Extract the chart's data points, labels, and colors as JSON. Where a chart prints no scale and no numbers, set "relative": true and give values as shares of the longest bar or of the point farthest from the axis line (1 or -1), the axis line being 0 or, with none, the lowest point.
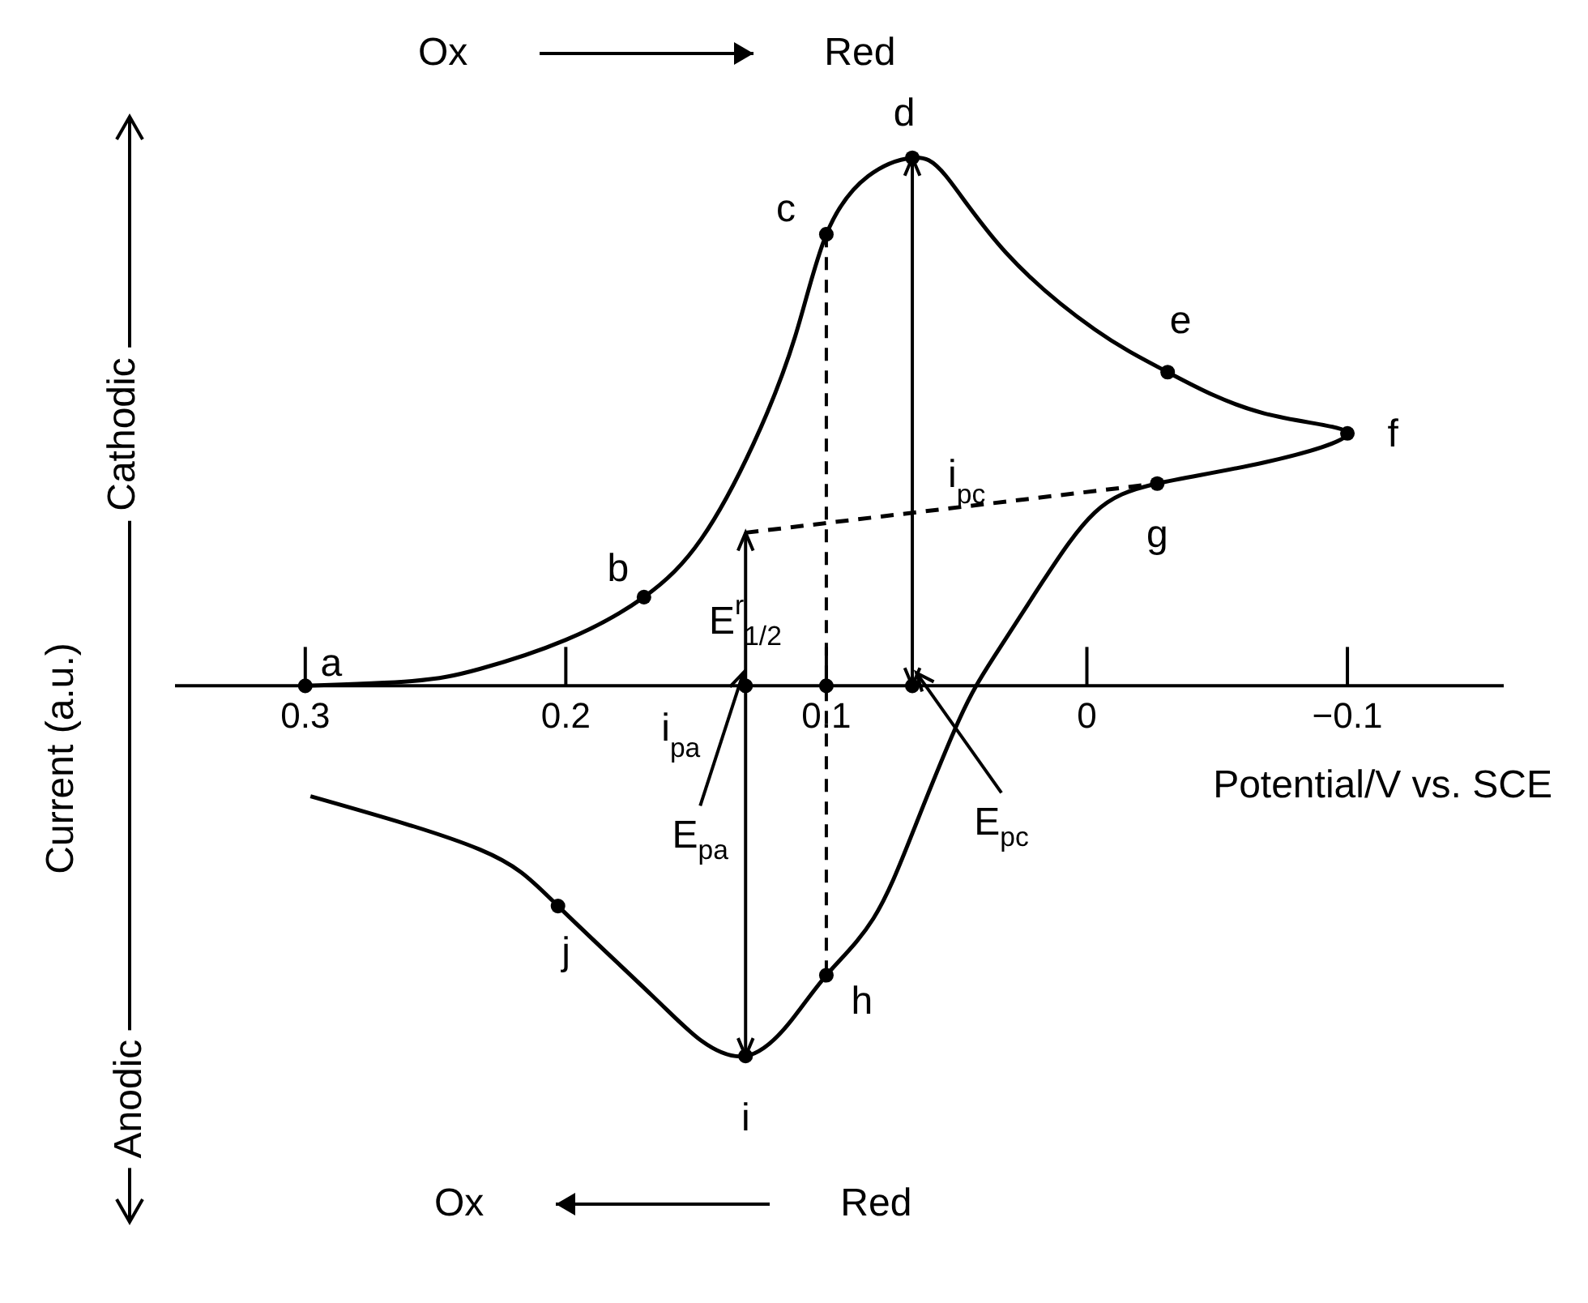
{
  "chart_data": {
    "type": "line",
    "relative": true,
    "xlabel": "Potential/V vs. SCE",
    "ylabel": "Current (a.u.)",
    "xlim": [
      0.35,
      -0.16
    ],
    "xticks": [
      0.3,
      0.2,
      0.1,
      0,
      {
        "value": -0.1,
        "label": "−0.1"
      }
    ],
    "series": [
      {
        "color": "#000000",
        "marker": "none",
        "line_style": "solid",
        "x": [
          0.3,
          0.259,
          0.233,
          0.2,
          0.17,
          0.148,
          0.128,
          0.112,
          0.1,
          0.084,
          0.067,
          0.054,
          0.031,
          -0.003,
          -0.031,
          -0.068,
          -0.1,
          -0.068,
          -0.027,
          -0.003,
          0.017,
          0.036,
          0.049,
          0.066,
          0.082,
          0.1,
          0.115,
          0.131,
          0.148,
          0.167,
          0.203,
          0.233,
          0.298
        ],
        "values": [
          0,
          0.009,
          0.032,
          0.087,
          0.168,
          0.278,
          0.458,
          0.661,
          0.855,
          0.965,
          1,
          0.965,
          0.82,
          0.675,
          0.594,
          0.516,
          0.478,
          0.423,
          0.383,
          0.328,
          0.197,
          0.052,
          -0.064,
          -0.267,
          -0.441,
          -0.548,
          -0.643,
          -0.701,
          -0.672,
          -0.586,
          -0.417,
          -0.31,
          -0.209
        ]
      },
      {
        "color": "#000000",
        "marker": "none",
        "line_style": "dashed",
        "x": [
          0.131,
          -0.027
        ],
        "values": [
          0.29,
          0.383
        ]
      },
      {
        "type": "scatter",
        "color": "#000000",
        "marker": "circle",
        "x": [
          0.3,
          0.17,
          0.1,
          0.067,
          -0.031,
          -0.1,
          -0.027,
          0.1,
          0.131,
          0.203,
          0.131,
          0.1,
          0.067
        ],
        "values": [
          0,
          0.168,
          0.855,
          1,
          0.594,
          0.478,
          0.383,
          -0.548,
          -0.701,
          -0.417,
          0,
          0,
          0
        ]
      }
    ],
    "ref_lines": [
      {
        "axis": "x",
        "value": 0.1,
        "color": "#000000",
        "line_style": "dashed"
      }
    ],
    "annotations": [
      "Ox",
      "Red",
      "Ox",
      "Red",
      "Cathodic",
      "Anodic",
      "i$_{pc}$",
      "i$_{pa}$",
      {
        "text": "a",
        "x": 0.3,
        "y": 0
      },
      {
        "text": "b",
        "x": 0.17,
        "y": 0.168
      },
      {
        "text": "c",
        "x": 0.1,
        "y": 0.855
      },
      {
        "text": "d",
        "x": 0.067,
        "y": 1
      },
      {
        "text": "e",
        "x": -0.031,
        "y": 0.594
      },
      {
        "text": "f",
        "x": -0.1,
        "y": 0.478
      },
      {
        "text": "g",
        "x": -0.027,
        "y": 0.383
      },
      {
        "text": "h",
        "x": 0.1,
        "y": -0.548
      },
      {
        "text": "i",
        "x": 0.131,
        "y": -0.701
      },
      {
        "text": "j",
        "x": 0.203,
        "y": -0.417
      },
      {
        "text": "E$^{r}$$_{1/2}$",
        "x": 0.1,
        "y": 0
      },
      {
        "text": "E$_{pa}$",
        "x": 0.131,
        "y": 0
      },
      {
        "text": "E$_{pc}$",
        "x": 0.067,
        "y": 0
      }
    ]
  }
}
